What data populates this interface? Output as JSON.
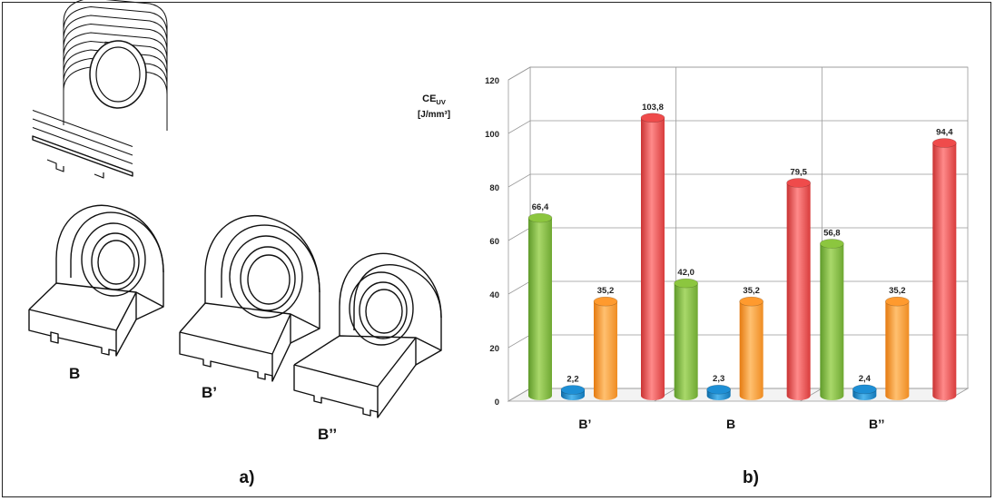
{
  "panel_a": {
    "caption": "a)",
    "part_labels": [
      "B",
      "B’",
      "B’’"
    ]
  },
  "panel_b": {
    "caption": "b)"
  },
  "chart_data": {
    "type": "bar",
    "title": "",
    "ylabel_main": "CE",
    "ylabel_sub": "UV",
    "ylabel_unit": "[J/mm³]",
    "xlabel": "",
    "ylim": [
      0,
      120
    ],
    "yticks": [
      0,
      20,
      40,
      60,
      80,
      100,
      120
    ],
    "grid": true,
    "legend": "none",
    "categories": [
      "B’",
      "B",
      "B’’"
    ],
    "series": [
      {
        "values": [
          66.4,
          42.0,
          56.8
        ],
        "labels": [
          "66,4",
          "42,0",
          "56,8"
        ],
        "color": "#8cc63f"
      },
      {
        "values": [
          2.2,
          2.3,
          2.4
        ],
        "labels": [
          "2,2",
          "2,3",
          "2,4"
        ],
        "color": "#1e8fd5"
      },
      {
        "values": [
          35.2,
          35.2,
          35.2
        ],
        "labels": [
          "35,2",
          "35,2",
          "35,2"
        ],
        "color": "#ff9a2e"
      },
      {
        "values": [
          103.8,
          79.5,
          94.4
        ],
        "labels": [
          "103,8",
          "79,5",
          "94,4"
        ],
        "color": "#ef4b4b"
      }
    ]
  }
}
